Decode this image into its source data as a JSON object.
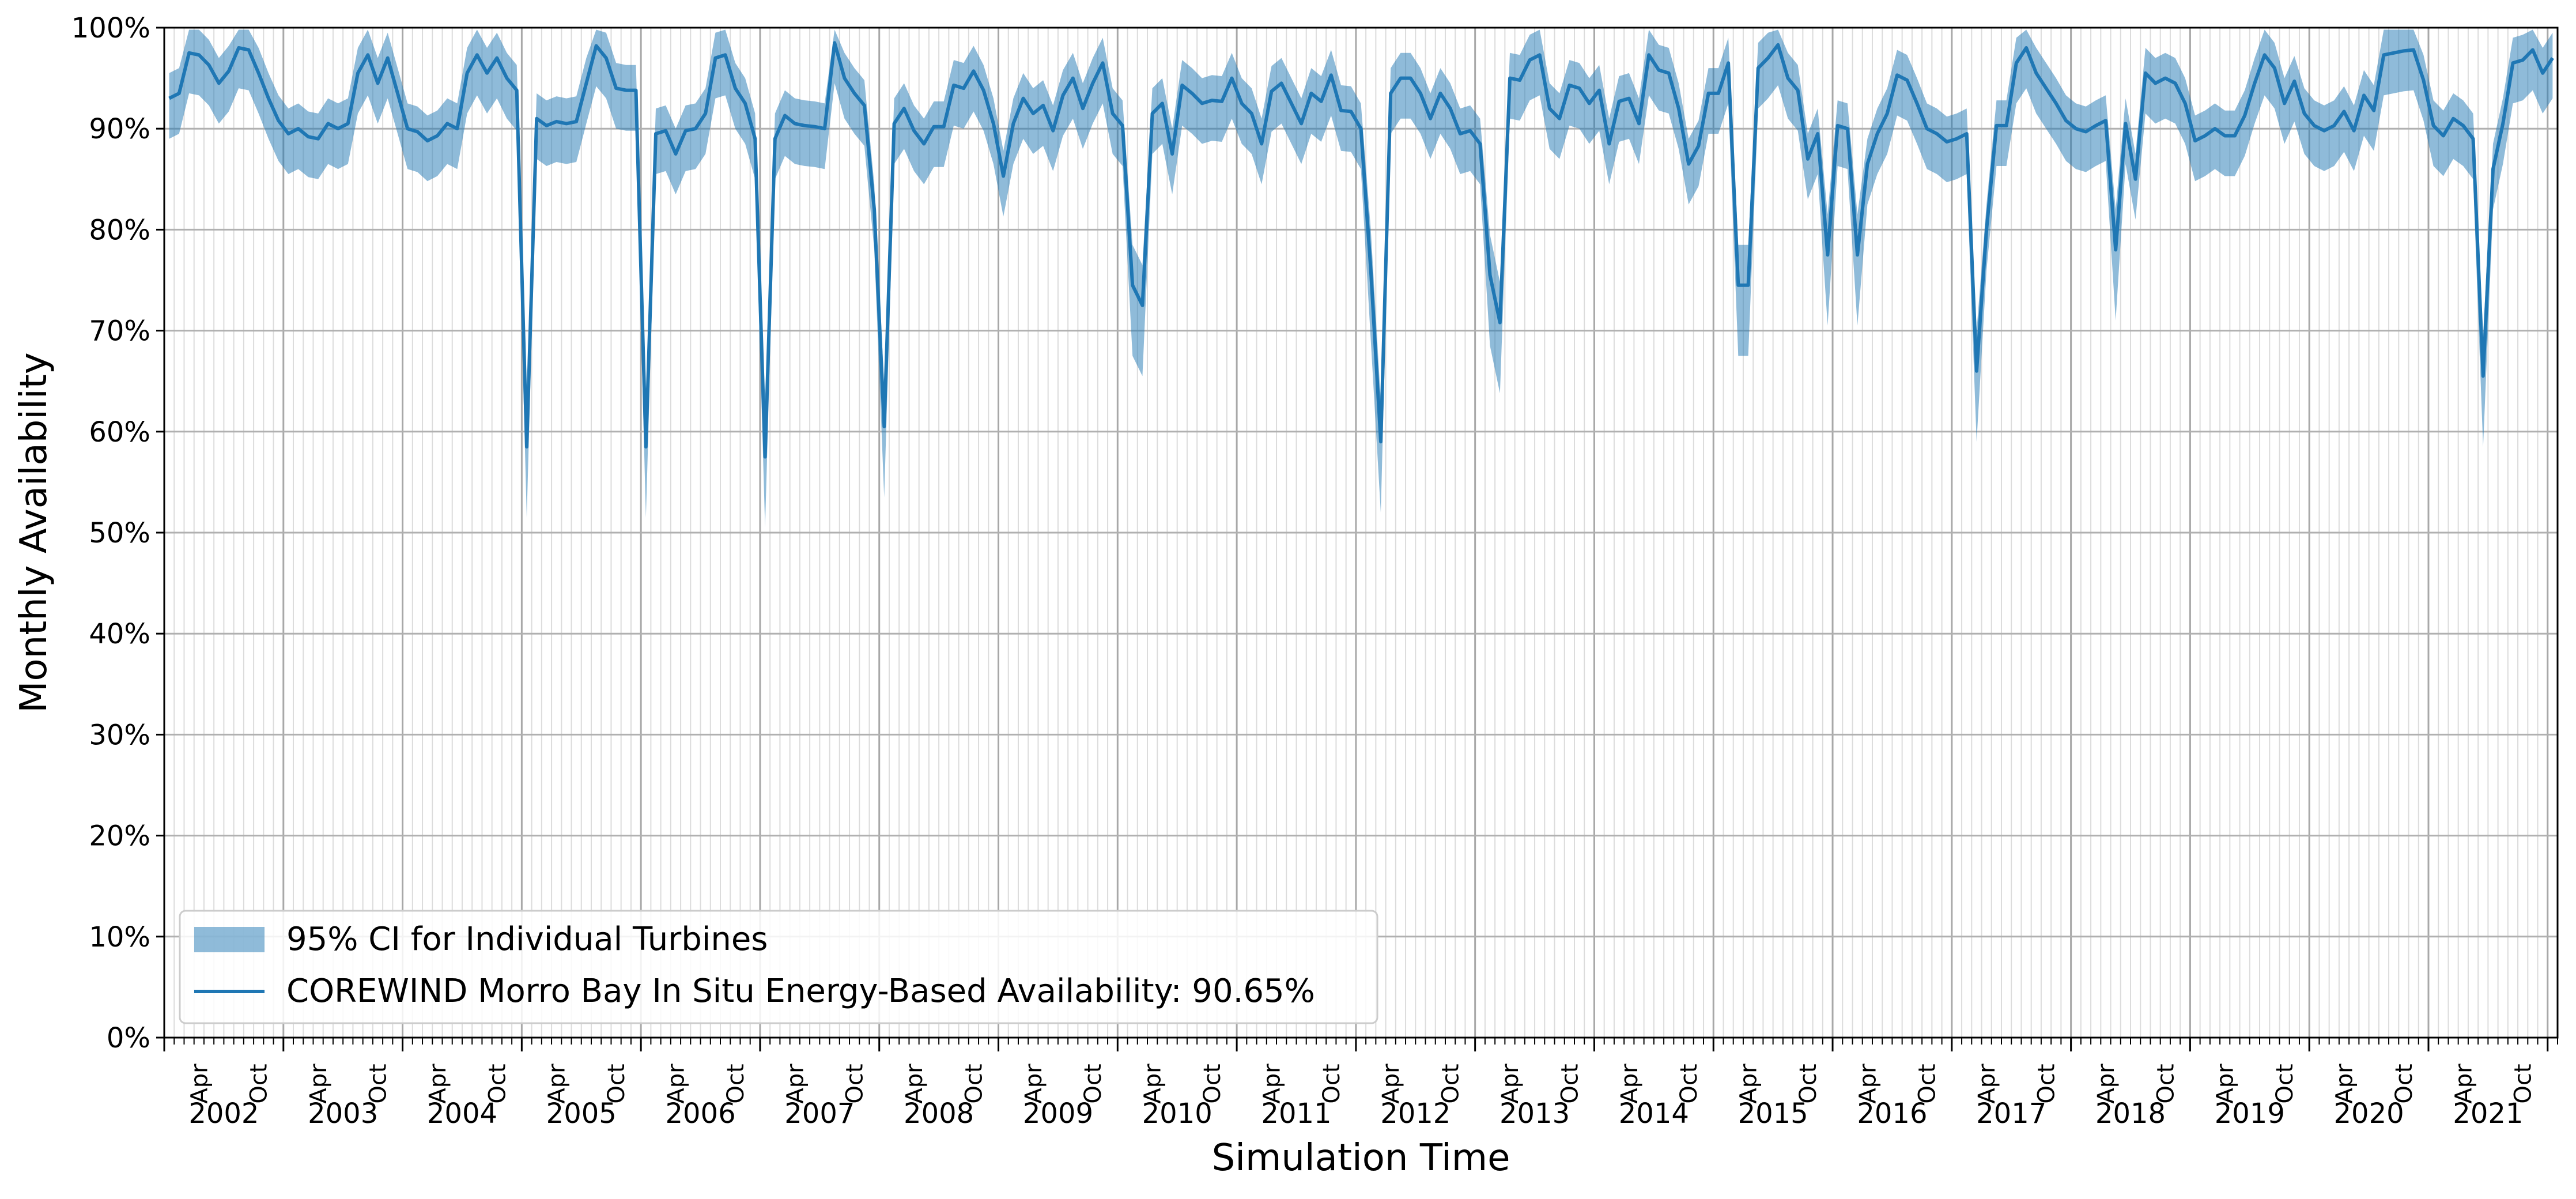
{
  "chart_data": {
    "type": "line",
    "xlabel": "Simulation Time",
    "ylabel": "Monthly Availability",
    "ylim": [
      0,
      100
    ],
    "y_ticks": [
      "0%",
      "10%",
      "20%",
      "30%",
      "40%",
      "50%",
      "60%",
      "70%",
      "80%",
      "90%",
      "100%"
    ],
    "x_range": [
      "2002-01",
      "2021-12"
    ],
    "years": [
      "2002",
      "2003",
      "2004",
      "2005",
      "2006",
      "2007",
      "2008",
      "2009",
      "2010",
      "2011",
      "2012",
      "2013",
      "2014",
      "2015",
      "2016",
      "2017",
      "2018",
      "2019",
      "2020",
      "2021"
    ],
    "minor_month_labels": [
      "Apr",
      "Oct"
    ],
    "grid": true,
    "legend_position": "lower-left",
    "legend": [
      {
        "label": "95% CI for Individual Turbines",
        "kind": "band"
      },
      {
        "label": "COREWIND Morro Bay In Situ Energy-Based Availability: 90.65%",
        "kind": "line"
      }
    ],
    "colors": {
      "line": "#1f77b4",
      "band": "#1f77b4",
      "band_opacity": 0.5,
      "grid": "#b0b0b0"
    },
    "series": [
      {
        "name": "COREWIND Morro Bay In Situ Energy-Based Availability: 90.65%",
        "values": [
          93,
          93.5,
          97.5,
          97.3,
          96.3,
          94.5,
          95.7,
          98,
          97.8,
          95.5,
          93,
          90.8,
          89.5,
          90,
          89.2,
          89,
          90.5,
          90,
          90.5,
          95.5,
          97.3,
          94.5,
          97,
          93.5,
          90,
          89.7,
          88.8,
          89.3,
          90.5,
          90,
          95.5,
          97.3,
          95.5,
          97,
          95,
          93.8,
          58.5,
          91,
          90.3,
          90.7,
          90.5,
          90.7,
          94.5,
          98.2,
          97,
          94,
          93.8,
          93.8,
          58.5,
          89.5,
          89.8,
          87.5,
          89.8,
          90,
          91.5,
          97,
          97.3,
          94,
          92.5,
          89,
          57.5,
          89,
          91.3,
          90.5,
          90.3,
          90.2,
          90,
          98.5,
          95,
          93.5,
          92.3,
          82,
          60.5,
          90.5,
          92,
          89.8,
          88.5,
          90.2,
          90.2,
          94.3,
          94,
          95.7,
          93.8,
          90.5,
          85.3,
          90.5,
          93,
          91.5,
          92.3,
          89.8,
          93.3,
          95,
          92,
          94.5,
          96.5,
          91.5,
          90.3,
          74.5,
          72.5,
          91.5,
          92.5,
          87.5,
          94.3,
          93.5,
          92.5,
          92.8,
          92.7,
          95,
          92.5,
          91.5,
          88.5,
          93.7,
          94.5,
          92.5,
          90.5,
          93.5,
          92.7,
          95.3,
          91.8,
          91.7,
          90,
          76,
          59,
          93.5,
          95,
          95,
          93.5,
          91,
          93.5,
          92,
          89.5,
          89.8,
          88.5,
          75.5,
          70.8,
          95,
          94.8,
          96.8,
          97.3,
          92,
          91,
          94.3,
          94,
          92.5,
          93.8,
          88.5,
          92.7,
          93,
          90.5,
          97.3,
          95.8,
          95.5,
          92,
          86.5,
          88.3,
          93.5,
          93.5,
          96.5,
          74.5,
          74.5,
          96,
          97,
          98.3,
          95,
          93.8,
          87,
          89.5,
          77.5,
          90.3,
          90,
          77.5,
          86.5,
          89.5,
          91.5,
          95.3,
          94.8,
          92.5,
          90,
          89.5,
          88.7,
          89,
          89.5,
          66,
          80,
          90.3,
          90.3,
          96.5,
          98,
          95.5,
          94,
          92.5,
          90.8,
          90,
          89.7,
          90.3,
          90.8,
          78,
          90.5,
          85,
          95.5,
          94.5,
          95,
          94.5,
          92.5,
          88.8,
          89.3,
          90,
          89.3,
          89.3,
          91.3,
          94.5,
          97.3,
          96,
          92.5,
          94.7,
          91.5,
          90.3,
          89.8,
          90.3,
          91.7,
          89.8,
          93.3,
          91.8,
          97.3,
          97.5,
          97.7,
          97.8,
          94.8,
          90.3,
          89.3,
          91,
          90.3,
          89,
          65.5,
          86,
          90.5,
          96.5,
          96.8,
          97.8,
          95.5,
          97
        ]
      }
    ]
  }
}
